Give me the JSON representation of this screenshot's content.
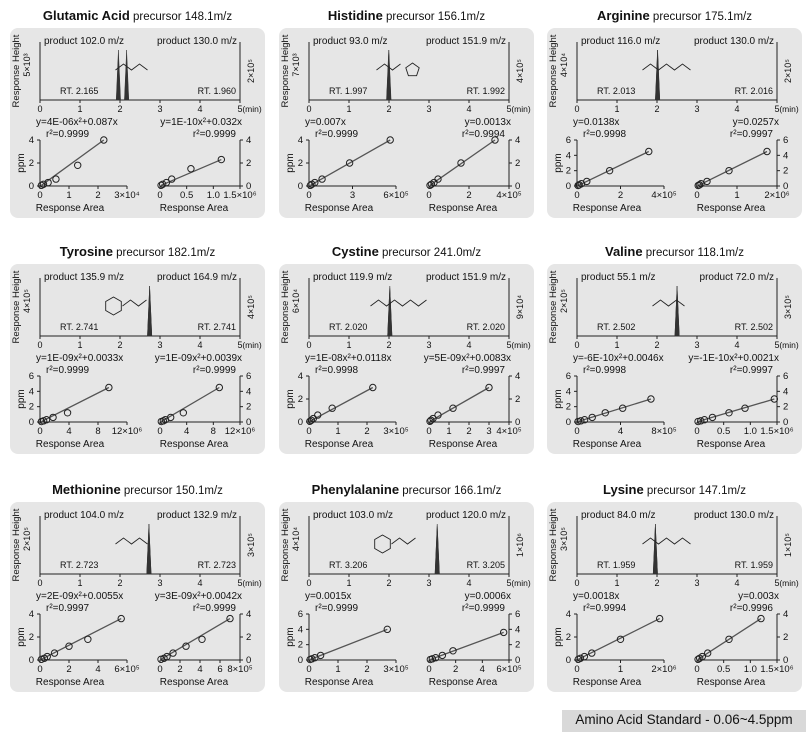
{
  "footer": "Amino Acid Standard - 0.06~4.5ppm",
  "axis_labels": {
    "chrom_y": "Response Height",
    "chrom_x": "(min)",
    "cal_y": "ppm",
    "cal_x": "Response Area"
  },
  "colors": {
    "panel_bg": "#e6e6e6",
    "peak": "#333333",
    "line": "#555555"
  },
  "chart_data": [
    {
      "type": "line",
      "name": "Glutamic Acid",
      "precursor": "precursor 148.1m/z",
      "structure": "glutamic-acid-structure",
      "chrom_xlim": [
        0,
        5
      ],
      "chrom_xticks": [
        "0",
        "1",
        "2",
        "3",
        "4",
        "5"
      ],
      "left": {
        "product": "product 102.0 m/z",
        "y_scale_label": "5×10³",
        "peak_rt": 2.165,
        "rt_label": "RT. 2.165",
        "equation": "y=4E-06x²+0.087x",
        "r2": "r²=0.9999",
        "cal_xlim": [
          0,
          3
        ],
        "cal_xticks": [
          "0",
          "1",
          "2",
          "3×10⁴"
        ],
        "cal_ylim": [
          0,
          4
        ],
        "cal_yticks": [
          "0",
          "2",
          "4"
        ],
        "points": [
          [
            0.05,
            0.06
          ],
          [
            0.12,
            0.15
          ],
          [
            0.28,
            0.3
          ],
          [
            0.55,
            0.6
          ],
          [
            1.3,
            1.8
          ],
          [
            2.2,
            4.0
          ]
        ]
      },
      "right": {
        "product": "product 130.0 m/z",
        "y_scale_label": "2×10⁵",
        "peak_rt": 1.96,
        "rt_label": "RT. 1.960",
        "equation": "y=1E-10x²+0.032x",
        "r2": "r²=0.9999",
        "cal_xlim": [
          0,
          1.5
        ],
        "cal_xticks": [
          "0",
          "0.5",
          "1.0",
          "1.5×10⁶"
        ],
        "cal_ylim": [
          0,
          4
        ],
        "cal_yticks": [
          "0",
          "2",
          "4"
        ],
        "points": [
          [
            0.02,
            0.06
          ],
          [
            0.05,
            0.15
          ],
          [
            0.12,
            0.3
          ],
          [
            0.22,
            0.6
          ],
          [
            0.58,
            1.5
          ],
          [
            1.15,
            2.3
          ]
        ]
      }
    },
    {
      "type": "line",
      "name": "Histidine",
      "precursor": "precursor 156.1m/z",
      "structure": "histidine-structure",
      "chrom_xlim": [
        0,
        5
      ],
      "chrom_xticks": [
        "0",
        "1",
        "2",
        "3",
        "4",
        "5"
      ],
      "left": {
        "product": "product 93.0 m/z",
        "y_scale_label": "7×10³",
        "peak_rt": 1.997,
        "rt_label": "RT. 1.997",
        "equation": "y=0.007x",
        "r2": "r²=0.9999",
        "cal_xlim": [
          0,
          6
        ],
        "cal_xticks": [
          "0",
          "3",
          "6×10⁵"
        ],
        "cal_ylim": [
          0,
          4
        ],
        "cal_yticks": [
          "0",
          "2",
          "4"
        ],
        "points": [
          [
            0.1,
            0.06
          ],
          [
            0.2,
            0.15
          ],
          [
            0.4,
            0.3
          ],
          [
            0.9,
            0.6
          ],
          [
            2.8,
            2.0
          ],
          [
            5.6,
            4.0
          ]
        ]
      },
      "right": {
        "product": "product 151.9 m/z",
        "y_scale_label": "4×10⁵",
        "peak_rt": 1.992,
        "rt_label": "RT. 1.992",
        "equation": "y=0.0013x",
        "r2": "r²=0.9994",
        "cal_xlim": [
          0,
          4
        ],
        "cal_xticks": [
          "0",
          "2",
          "4×10⁵"
        ],
        "cal_ylim": [
          0,
          4
        ],
        "cal_yticks": [
          "0",
          "2",
          "4"
        ],
        "points": [
          [
            0.05,
            0.06
          ],
          [
            0.12,
            0.15
          ],
          [
            0.25,
            0.3
          ],
          [
            0.45,
            0.6
          ],
          [
            1.6,
            2.0
          ],
          [
            3.3,
            4.0
          ]
        ]
      }
    },
    {
      "type": "line",
      "name": "Arginine",
      "precursor": "precursor 175.1m/z",
      "structure": "arginine-structure",
      "chrom_xlim": [
        0,
        5
      ],
      "chrom_xticks": [
        "0",
        "1",
        "2",
        "3",
        "4",
        "5"
      ],
      "left": {
        "product": "product 116.0 m/z",
        "y_scale_label": "4×10⁴",
        "peak_rt": 2.013,
        "rt_label": "RT. 2.013",
        "equation": "y=0.0138x",
        "r2": "r²=0.9998",
        "cal_xlim": [
          0,
          4
        ],
        "cal_xticks": [
          "0",
          "2",
          "4×10⁵"
        ],
        "cal_ylim": [
          0,
          6
        ],
        "cal_yticks": [
          "0",
          "2",
          "4",
          "6"
        ],
        "points": [
          [
            0.05,
            0.06
          ],
          [
            0.1,
            0.15
          ],
          [
            0.2,
            0.3
          ],
          [
            0.45,
            0.6
          ],
          [
            1.5,
            2.0
          ],
          [
            3.3,
            4.5
          ]
        ]
      },
      "right": {
        "product": "product 130.0 m/z",
        "y_scale_label": "2×10⁵",
        "peak_rt": 2.016,
        "rt_label": "RT. 2.016",
        "equation": "y=0.0257x",
        "r2": "r²=0.9997",
        "cal_xlim": [
          0,
          2
        ],
        "cal_xticks": [
          "0",
          "1",
          "2×10⁶"
        ],
        "cal_ylim": [
          0,
          6
        ],
        "cal_yticks": [
          "0",
          "2",
          "4",
          "6"
        ],
        "points": [
          [
            0.03,
            0.06
          ],
          [
            0.06,
            0.15
          ],
          [
            0.1,
            0.3
          ],
          [
            0.25,
            0.6
          ],
          [
            0.8,
            2.0
          ],
          [
            1.75,
            4.5
          ]
        ]
      }
    },
    {
      "type": "line",
      "name": "Tyrosine",
      "precursor": "precursor 182.1m/z",
      "structure": "tyrosine-structure",
      "chrom_xlim": [
        0,
        5
      ],
      "chrom_xticks": [
        "0",
        "1",
        "2",
        "3",
        "4",
        "5"
      ],
      "left": {
        "product": "product 135.9 m/z",
        "y_scale_label": "4×10⁵",
        "peak_rt": 2.741,
        "rt_label": "RT. 2.741",
        "equation": "y=1E-09x²+0.0033x",
        "r2": "r²=0.9999",
        "cal_xlim": [
          0,
          12
        ],
        "cal_xticks": [
          "0",
          "4",
          "8",
          "12×10⁶"
        ],
        "cal_ylim": [
          0,
          6
        ],
        "cal_yticks": [
          "0",
          "2",
          "4",
          "6"
        ],
        "points": [
          [
            0.2,
            0.06
          ],
          [
            0.5,
            0.15
          ],
          [
            0.9,
            0.3
          ],
          [
            1.8,
            0.6
          ],
          [
            3.8,
            1.2
          ],
          [
            9.5,
            4.5
          ]
        ]
      },
      "right": {
        "product": "product 164.9 m/z",
        "y_scale_label": "4×10⁵",
        "peak_rt": 2.741,
        "rt_label": "RT. 2.741",
        "equation": "y=1E-09x²+0.0039x",
        "r2": "r²=0.9999",
        "cal_xlim": [
          0,
          12
        ],
        "cal_xticks": [
          "0",
          "4",
          "8",
          "12×10⁶"
        ],
        "cal_ylim": [
          0,
          6
        ],
        "cal_yticks": [
          "0",
          "2",
          "4",
          "6"
        ],
        "points": [
          [
            0.2,
            0.06
          ],
          [
            0.5,
            0.15
          ],
          [
            0.8,
            0.3
          ],
          [
            1.6,
            0.6
          ],
          [
            3.5,
            1.2
          ],
          [
            8.9,
            4.5
          ]
        ]
      }
    },
    {
      "type": "line",
      "name": "Cystine",
      "precursor": "precursor 241.0m/z",
      "structure": "cystine-structure",
      "chrom_xlim": [
        0,
        5
      ],
      "chrom_xticks": [
        "0",
        "1",
        "2",
        "3",
        "4",
        "5"
      ],
      "left": {
        "product": "product 119.9 m/z",
        "y_scale_label": "6×10⁴",
        "peak_rt": 2.02,
        "rt_label": "RT. 2.020",
        "equation": "y=1E-08x²+0.0118x",
        "r2": "r²=0.9998",
        "cal_xlim": [
          0,
          3
        ],
        "cal_xticks": [
          "0",
          "1",
          "2",
          "3×10⁵"
        ],
        "cal_ylim": [
          0,
          4
        ],
        "cal_yticks": [
          "0",
          "2",
          "4"
        ],
        "points": [
          [
            0.03,
            0.06
          ],
          [
            0.08,
            0.15
          ],
          [
            0.15,
            0.3
          ],
          [
            0.3,
            0.6
          ],
          [
            0.8,
            1.2
          ],
          [
            2.2,
            3.0
          ]
        ]
      },
      "right": {
        "product": "product 151.9 m/z",
        "y_scale_label": "9×10⁴",
        "peak_rt": 2.02,
        "rt_label": "RT. 2.020",
        "equation": "y=5E-09x²+0.0083x",
        "r2": "r²=0.9997",
        "cal_xlim": [
          0,
          4
        ],
        "cal_xticks": [
          "0",
          "1",
          "2",
          "3",
          "4×10⁵"
        ],
        "cal_ylim": [
          0,
          4
        ],
        "cal_yticks": [
          "0",
          "2",
          "4"
        ],
        "points": [
          [
            0.05,
            0.06
          ],
          [
            0.1,
            0.15
          ],
          [
            0.2,
            0.3
          ],
          [
            0.45,
            0.6
          ],
          [
            1.2,
            1.2
          ],
          [
            3.0,
            3.0
          ]
        ]
      }
    },
    {
      "type": "line",
      "name": "Valine",
      "precursor": "precursor 118.1m/z",
      "structure": "valine-structure",
      "chrom_xlim": [
        0,
        5
      ],
      "chrom_xticks": [
        "0",
        "1",
        "2",
        "3",
        "4",
        "5"
      ],
      "left": {
        "product": "product 55.1 m/z",
        "y_scale_label": "2×10⁵",
        "peak_rt": 2.502,
        "rt_label": "RT. 2.502",
        "equation": "y=-6E-10x²+0.0046x",
        "r2": "r²=0.9998",
        "cal_xlim": [
          0,
          8
        ],
        "cal_xticks": [
          "0",
          "4",
          "8×10⁵"
        ],
        "cal_ylim": [
          0,
          6
        ],
        "cal_yticks": [
          "0",
          "2",
          "4",
          "6"
        ],
        "points": [
          [
            0.1,
            0.06
          ],
          [
            0.35,
            0.15
          ],
          [
            0.7,
            0.3
          ],
          [
            1.4,
            0.6
          ],
          [
            2.6,
            1.2
          ],
          [
            4.2,
            1.8
          ],
          [
            6.8,
            3.0
          ]
        ]
      },
      "right": {
        "product": "product 72.0 m/z",
        "y_scale_label": "3×10⁵",
        "peak_rt": 2.502,
        "rt_label": "RT. 2.502",
        "equation": "y=-1E-10x²+0.0021x",
        "r2": "r²=0.9997",
        "cal_xlim": [
          0,
          1.5
        ],
        "cal_xticks": [
          "0",
          "0.5",
          "1.0",
          "1.5×10⁶"
        ],
        "cal_ylim": [
          0,
          6
        ],
        "cal_yticks": [
          "0",
          "2",
          "4",
          "6"
        ],
        "points": [
          [
            0.02,
            0.06
          ],
          [
            0.07,
            0.15
          ],
          [
            0.14,
            0.3
          ],
          [
            0.29,
            0.6
          ],
          [
            0.6,
            1.2
          ],
          [
            0.9,
            1.8
          ],
          [
            1.45,
            3.0
          ]
        ]
      }
    },
    {
      "type": "line",
      "name": "Methionine",
      "precursor": "precursor 150.1m/z",
      "structure": "methionine-structure",
      "chrom_xlim": [
        0,
        5
      ],
      "chrom_xticks": [
        "0",
        "1",
        "2",
        "3",
        "4",
        "5"
      ],
      "left": {
        "product": "product 104.0 m/z",
        "y_scale_label": "2×10⁵",
        "peak_rt": 2.723,
        "rt_label": "RT. 2.723",
        "equation": "y=2E-09x²+0.0055x",
        "r2": "r²=0.9997",
        "cal_xlim": [
          0,
          6
        ],
        "cal_xticks": [
          "0",
          "2",
          "4",
          "6×10⁵"
        ],
        "cal_ylim": [
          0,
          4
        ],
        "cal_yticks": [
          "0",
          "2",
          "4"
        ],
        "points": [
          [
            0.1,
            0.06
          ],
          [
            0.3,
            0.15
          ],
          [
            0.5,
            0.3
          ],
          [
            1.0,
            0.6
          ],
          [
            2.0,
            1.2
          ],
          [
            3.3,
            1.8
          ],
          [
            5.6,
            3.6
          ]
        ]
      },
      "right": {
        "product": "product 132.9 m/z",
        "y_scale_label": "3×10⁵",
        "peak_rt": 2.723,
        "rt_label": "RT. 2.723",
        "equation": "y=3E-09x²+0.0042x",
        "r2": "r²=0.9999",
        "cal_xlim": [
          0,
          8
        ],
        "cal_xticks": [
          "0",
          "2",
          "4",
          "6",
          "8×10⁵"
        ],
        "cal_ylim": [
          0,
          4
        ],
        "cal_yticks": [
          "0",
          "2",
          "4"
        ],
        "points": [
          [
            0.1,
            0.06
          ],
          [
            0.4,
            0.15
          ],
          [
            0.7,
            0.3
          ],
          [
            1.3,
            0.6
          ],
          [
            2.6,
            1.2
          ],
          [
            4.2,
            1.8
          ],
          [
            7.0,
            3.6
          ]
        ]
      }
    },
    {
      "type": "line",
      "name": "Phenylalanine",
      "precursor": "precursor 166.1m/z",
      "structure": "phenylalanine-structure",
      "chrom_xlim": [
        0,
        5
      ],
      "chrom_xticks": [
        "0",
        "1",
        "2",
        "3",
        "4",
        "5"
      ],
      "left": {
        "product": "product 103.0 m/z",
        "y_scale_label": "4×10⁴",
        "peak_rt": 3.206,
        "rt_label": "RT. 3.206",
        "equation": "y=0.0015x",
        "r2": "r²=0.9999",
        "cal_xlim": [
          0,
          3
        ],
        "cal_xticks": [
          "0",
          "1",
          "2",
          "3×10⁵"
        ],
        "cal_ylim": [
          0,
          6
        ],
        "cal_yticks": [
          "0",
          "2",
          "4",
          "6"
        ],
        "points": [
          [
            0.04,
            0.06
          ],
          [
            0.1,
            0.15
          ],
          [
            0.2,
            0.3
          ],
          [
            0.4,
            0.6
          ],
          [
            2.7,
            4.0
          ]
        ]
      },
      "right": {
        "product": "product 120.0 m/z",
        "y_scale_label": "1×10⁶",
        "peak_rt": 3.205,
        "rt_label": "RT. 3.205",
        "equation": "y=0.0006x",
        "r2": "r²=0.9999",
        "cal_xlim": [
          0,
          6
        ],
        "cal_xticks": [
          "0",
          "2",
          "4",
          "6×10⁵"
        ],
        "cal_ylim": [
          0,
          6
        ],
        "cal_yticks": [
          "0",
          "2",
          "4",
          "6"
        ],
        "points": [
          [
            0.1,
            0.06
          ],
          [
            0.25,
            0.15
          ],
          [
            0.5,
            0.3
          ],
          [
            1.0,
            0.6
          ],
          [
            1.8,
            1.2
          ],
          [
            5.6,
            3.6
          ]
        ]
      }
    },
    {
      "type": "line",
      "name": "Lysine",
      "precursor": "precursor 147.1m/z",
      "structure": "lysine-structure",
      "chrom_xlim": [
        0,
        5
      ],
      "chrom_xticks": [
        "0",
        "1",
        "2",
        "3",
        "4",
        "5"
      ],
      "left": {
        "product": "product 84.0 m/z",
        "y_scale_label": "3×10⁵",
        "peak_rt": 1.959,
        "rt_label": "RT. 1.959",
        "equation": "y=0.0018x",
        "r2": "r²=0.9994",
        "cal_xlim": [
          0,
          2
        ],
        "cal_xticks": [
          "0",
          "1",
          "2×10⁶"
        ],
        "cal_ylim": [
          0,
          4
        ],
        "cal_yticks": [
          "0",
          "2",
          "4"
        ],
        "points": [
          [
            0.03,
            0.06
          ],
          [
            0.08,
            0.15
          ],
          [
            0.17,
            0.3
          ],
          [
            0.34,
            0.6
          ],
          [
            1.0,
            1.8
          ],
          [
            1.9,
            3.6
          ]
        ]
      },
      "right": {
        "product": "product 130.0 m/z",
        "y_scale_label": "1×10⁵",
        "peak_rt": 1.959,
        "rt_label": "RT. 1.959",
        "equation": "y=0.003x",
        "r2": "r²=0.9996",
        "cal_xlim": [
          0,
          1.5
        ],
        "cal_xticks": [
          "0",
          "0.5",
          "1.0",
          "1.5×10⁶"
        ],
        "cal_ylim": [
          0,
          4
        ],
        "cal_yticks": [
          "0",
          "2",
          "4"
        ],
        "points": [
          [
            0.02,
            0.06
          ],
          [
            0.05,
            0.15
          ],
          [
            0.1,
            0.3
          ],
          [
            0.2,
            0.6
          ],
          [
            0.6,
            1.8
          ],
          [
            1.2,
            3.6
          ]
        ]
      }
    }
  ]
}
